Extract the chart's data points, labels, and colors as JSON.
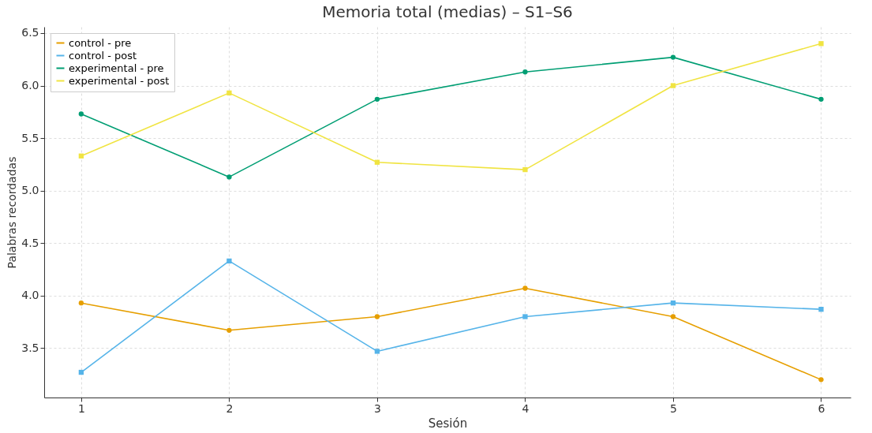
{
  "chart_data": {
    "type": "line",
    "title": "Memoria total (medias) – S1–S6",
    "xlabel": "Sesión",
    "ylabel": "Palabras recordadas",
    "x": [
      1,
      2,
      3,
      4,
      5,
      6
    ],
    "series": [
      {
        "name": "control - pre",
        "color": "#e69f00",
        "marker": "circle",
        "values": [
          3.93,
          3.67,
          3.8,
          4.07,
          3.8,
          3.2
        ]
      },
      {
        "name": "control - post",
        "color": "#56b4e9",
        "marker": "square",
        "values": [
          3.27,
          4.33,
          3.47,
          3.8,
          3.93,
          3.87
        ]
      },
      {
        "name": "experimental - pre",
        "color": "#009e73",
        "marker": "circle",
        "values": [
          5.73,
          5.13,
          5.87,
          6.13,
          6.27,
          5.87
        ]
      },
      {
        "name": "experimental - post",
        "color": "#f0e442",
        "marker": "square",
        "values": [
          5.33,
          5.93,
          5.27,
          5.2,
          6.0,
          6.4
        ]
      }
    ],
    "xlim": [
      0.75,
      6.2
    ],
    "xticks": [
      1,
      2,
      3,
      4,
      5,
      6
    ],
    "ylim": [
      3.03,
      6.56
    ],
    "yticks": [
      3.5,
      {
        "value": 4,
        "label": "4.0"
      },
      4.5,
      {
        "value": 5,
        "label": "5.0"
      },
      5.5,
      {
        "value": 6,
        "label": "6.0"
      },
      6.5
    ],
    "grid": true,
    "legend": "top left",
    "line_style": "solid"
  }
}
